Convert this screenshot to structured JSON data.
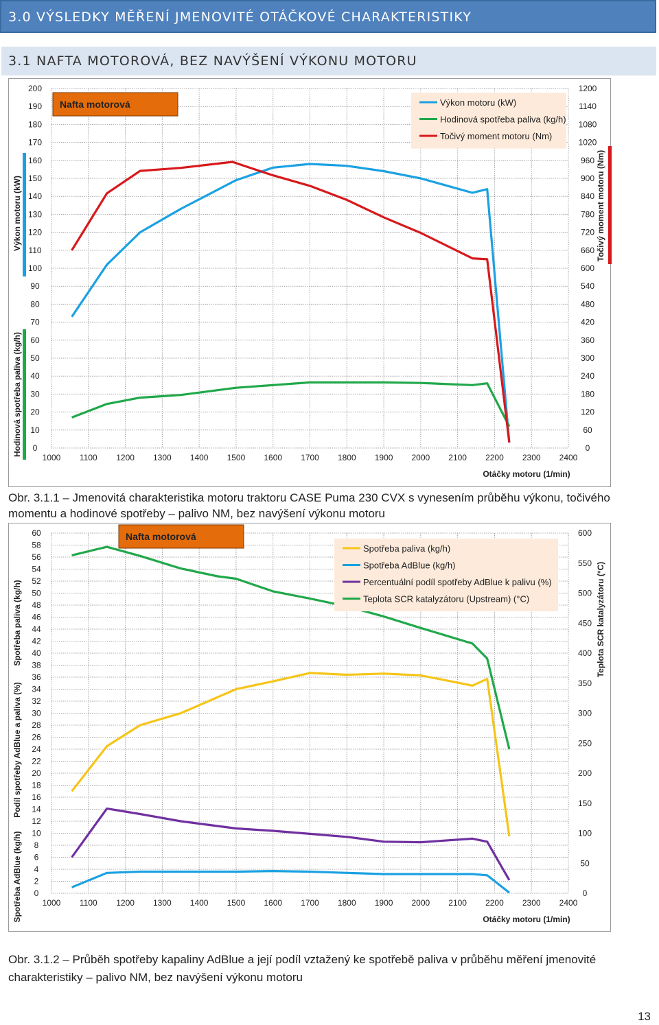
{
  "heading_main": "3.0 VÝSLEDKY MĚŘENÍ JMENOVITÉ OTÁČKOVÉ CHARAKTERISTIKY",
  "heading_sub": "3.1 NAFTA MOTOROVÁ, BEZ NAVÝŠENÍ VÝKONU MOTORU",
  "caption1": "Obr. 3.1.1 – Jmenovitá charakteristika motoru traktoru CASE Puma 230 CVX s vynesením průběhu výkonu, točivého momentu a hodinové spotřeby – palivo NM, bez navýšení výkonu motoru",
  "caption2": "Obr. 3.1.2 – Průběh spotřeby kapaliny AdBlue a její podíl vztažený ke spotřebě paliva v průběhu měření jmenovité charakteristiky – palivo NM, bez navýšení výkonu motoru",
  "page_number": "13",
  "chart_data": [
    {
      "type": "line",
      "title": "Nafta motorová",
      "xlabel": "Otáčky motoru (1/min)",
      "xlim": [
        1000,
        2400
      ],
      "x_ticks": [
        "1000",
        "1100",
        "1200",
        "1300",
        "1400",
        "1500",
        "1600",
        "1700",
        "1800",
        "1900",
        "2000",
        "2100",
        "2200",
        "2300",
        "2400"
      ],
      "ylabel_left_top": "Výkon motoru (kW)",
      "ylabel_left_bottom": "Hodinová spotřeba paliva (kg/h)",
      "ylabel_right": "Točivý moment motoru (Nm)",
      "ylim_left": [
        0,
        200
      ],
      "ylim_right": [
        0,
        1200
      ],
      "left_ticks": [
        "0",
        "10",
        "20",
        "30",
        "40",
        "50",
        "60",
        "70",
        "80",
        "90",
        "100",
        "110",
        "120",
        "130",
        "140",
        "150",
        "160",
        "170",
        "180",
        "190",
        "200"
      ],
      "right_ticks": [
        "0",
        "60",
        "120",
        "180",
        "240",
        "300",
        "360",
        "420",
        "480",
        "540",
        "600",
        "660",
        "720",
        "780",
        "840",
        "900",
        "960",
        "1020",
        "1080",
        "1140",
        "1200"
      ],
      "grid": true,
      "legend_position": "top-right",
      "series": [
        {
          "name": "Výkon motoru (kW)",
          "color": "#1ba1e2",
          "axis": "left",
          "x": [
            1055,
            1150,
            1240,
            1350,
            1500,
            1600,
            1700,
            1800,
            1900,
            2000,
            2140,
            2180,
            2240
          ],
          "y": [
            73,
            102,
            120,
            133,
            149,
            156,
            158,
            157,
            154,
            150,
            142,
            144,
            3
          ]
        },
        {
          "name": "Hodinová spotřeba paliva (kg/h)",
          "color": "#20a84a",
          "axis": "left",
          "x": [
            1055,
            1150,
            1240,
            1350,
            1500,
            1600,
            1700,
            1800,
            1900,
            2000,
            2140,
            2180,
            2240
          ],
          "y": [
            17,
            24.5,
            28,
            29.5,
            33.5,
            35,
            36.5,
            36.5,
            36.5,
            36.2,
            35,
            36,
            12
          ]
        },
        {
          "name": "Točivý moment motoru (Nm)",
          "color": "#d7191c",
          "axis": "right",
          "x": [
            1055,
            1150,
            1240,
            1350,
            1490,
            1600,
            1700,
            1800,
            1900,
            2000,
            2140,
            2180,
            2240
          ],
          "y": [
            660,
            850,
            925,
            935,
            955,
            910,
            875,
            828,
            770,
            718,
            633,
            630,
            18
          ]
        }
      ]
    },
    {
      "type": "line",
      "title": "Nafta motorová",
      "xlabel": "Otáčky motoru (1/min)",
      "xlim": [
        1000,
        2400
      ],
      "x_ticks": [
        "1000",
        "1100",
        "1200",
        "1300",
        "1400",
        "1500",
        "1600",
        "1700",
        "1800",
        "1900",
        "2000",
        "2100",
        "2200",
        "2300",
        "2400"
      ],
      "ylabel_left_a": "Spotřeba AdBlue (kg/h)",
      "ylabel_left_b": "Podíl spotřeby AdBlue a paliva (%)",
      "ylabel_left_c": "Spotřeba paliva (kg/h)",
      "ylabel_right": "Teplota SCR katalyzátoru (°C)",
      "ylim_left": [
        0,
        60
      ],
      "ylim_right": [
        0,
        600
      ],
      "left_ticks": [
        "0",
        "2",
        "4",
        "6",
        "8",
        "10",
        "12",
        "14",
        "16",
        "18",
        "20",
        "22",
        "24",
        "26",
        "28",
        "30",
        "32",
        "34",
        "36",
        "38",
        "40",
        "42",
        "44",
        "46",
        "48",
        "50",
        "52",
        "54",
        "56",
        "58",
        "60"
      ],
      "right_ticks": [
        "0",
        "50",
        "100",
        "150",
        "200",
        "250",
        "300",
        "350",
        "400",
        "450",
        "500",
        "550",
        "600"
      ],
      "grid": true,
      "legend_position": "top-right",
      "series": [
        {
          "name": "Spotřeba paliva (kg/h)",
          "color": "#f5c518",
          "axis": "left",
          "x": [
            1055,
            1150,
            1240,
            1350,
            1500,
            1600,
            1700,
            1800,
            1900,
            2000,
            2140,
            2180,
            2240
          ],
          "y": [
            17,
            24.5,
            28,
            30,
            34,
            35.3,
            36.7,
            36.4,
            36.6,
            36.3,
            34.6,
            35.7,
            9.5
          ]
        },
        {
          "name": "Spotřeba AdBlue (kg/h)",
          "color": "#1ba1e2",
          "axis": "left",
          "x": [
            1055,
            1150,
            1240,
            1350,
            1500,
            1600,
            1700,
            1800,
            1900,
            2000,
            2140,
            2180,
            2240
          ],
          "y": [
            1,
            3.4,
            3.6,
            3.6,
            3.6,
            3.7,
            3.6,
            3.4,
            3.2,
            3.2,
            3.2,
            3,
            0.1
          ]
        },
        {
          "name": "Percentuální podíl spotřeby AdBlue k palivu (%)",
          "color": "#7030a0",
          "axis": "left",
          "x": [
            1055,
            1150,
            1240,
            1350,
            1500,
            1600,
            1700,
            1800,
            1900,
            2000,
            2140,
            2180,
            2240
          ],
          "y": [
            6,
            14.1,
            13.2,
            12,
            10.8,
            10.4,
            9.9,
            9.4,
            8.6,
            8.5,
            9.1,
            8.6,
            2.2
          ]
        },
        {
          "name": "Teplota SCR katalyzátoru (Upstream) (°C)",
          "color": "#20a84a",
          "axis": "right",
          "x": [
            1055,
            1150,
            1240,
            1350,
            1450,
            1500,
            1600,
            1700,
            1800,
            1900,
            2000,
            2140,
            2180,
            2240
          ],
          "y": [
            563,
            577,
            562,
            541,
            528,
            524,
            503,
            491,
            478,
            461,
            442,
            416,
            391,
            240
          ]
        }
      ]
    }
  ]
}
